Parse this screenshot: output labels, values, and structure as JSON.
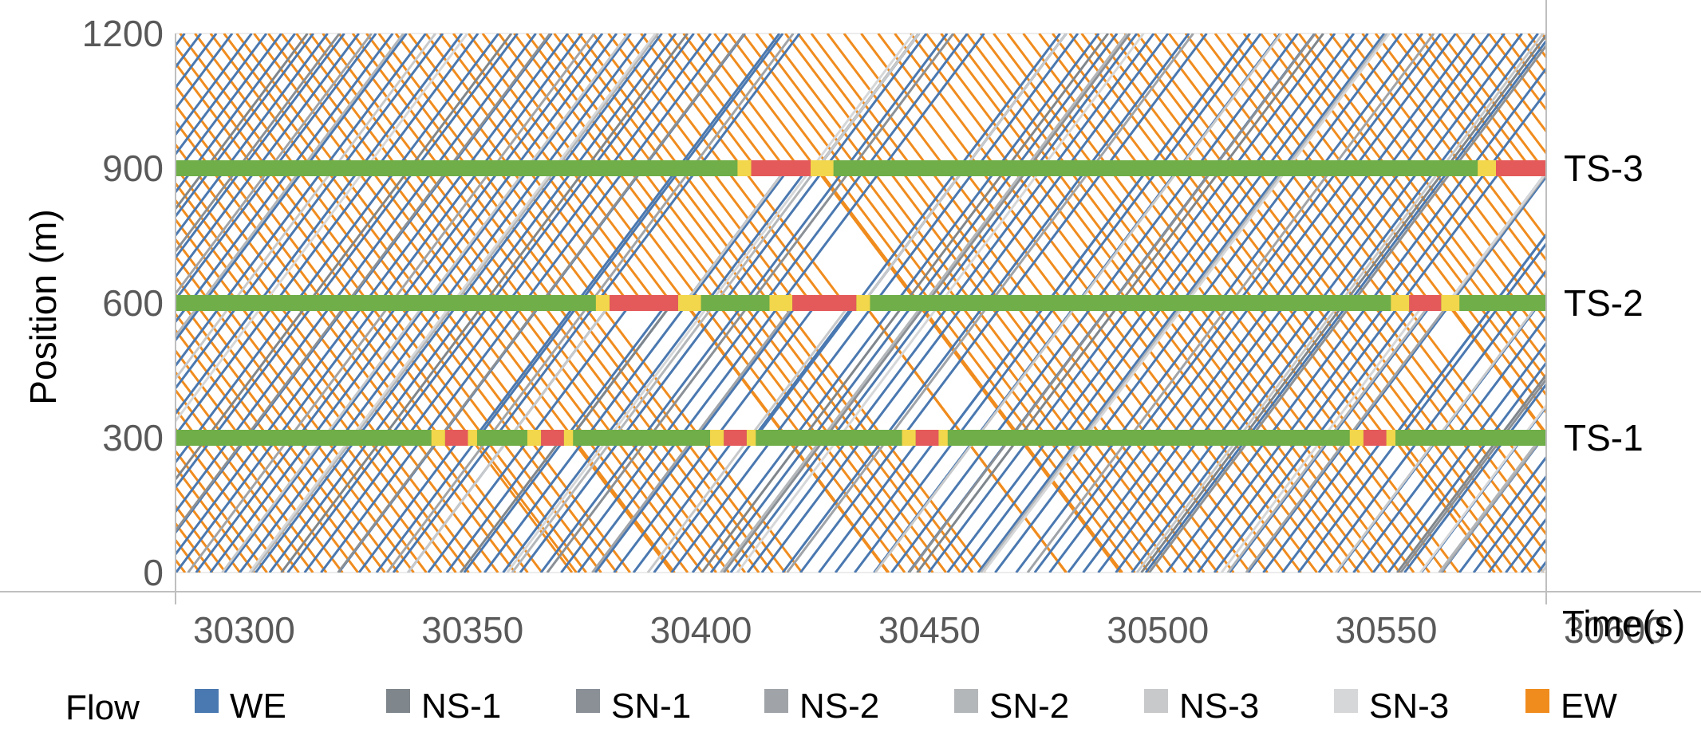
{
  "chart_data": {
    "type": "line",
    "title": "",
    "xlabel": "Time(s)",
    "ylabel": "Position (m)",
    "xlim": [
      30285,
      30585
    ],
    "ylim": [
      0,
      1200
    ],
    "x_ticks": [
      "30300",
      "30350",
      "30400",
      "30450",
      "30500",
      "30550",
      "30600"
    ],
    "y_ticks": [
      "0",
      "300",
      "600",
      "900",
      "1200"
    ],
    "grid": "horizontal",
    "legend_title": "Flow",
    "legend_position": "bottom",
    "series": [
      {
        "name": "WE",
        "color": "#4a78b0",
        "direction": "increasing",
        "speed_mps": 13.5
      },
      {
        "name": "NS-1",
        "color": "#7f868c",
        "direction": "increasing",
        "speed_mps": 13.5
      },
      {
        "name": "SN-1",
        "color": "#8a9096",
        "direction": "increasing",
        "speed_mps": 13.5
      },
      {
        "name": "NS-2",
        "color": "#a0a4a8",
        "direction": "increasing",
        "speed_mps": 13.5
      },
      {
        "name": "SN-2",
        "color": "#b4b7ba",
        "direction": "increasing",
        "speed_mps": 13.5
      },
      {
        "name": "NS-3",
        "color": "#c7c9cb",
        "direction": "increasing",
        "speed_mps": 13.5
      },
      {
        "name": "SN-3",
        "color": "#d6d7d9",
        "direction": "increasing",
        "speed_mps": 13.5
      },
      {
        "name": "EW",
        "color": "#f08c1e",
        "direction": "decreasing",
        "speed_mps": 13.5
      }
    ],
    "signals": [
      {
        "label": "TS-1",
        "position": 300,
        "red": [
          [
            30344,
            30349
          ],
          [
            30365,
            30370
          ],
          [
            30405,
            30410
          ],
          [
            30447,
            30452
          ],
          [
            30545,
            30550
          ]
        ],
        "yellow": [
          [
            30341,
            30344
          ],
          [
            30349,
            30351
          ],
          [
            30362,
            30365
          ],
          [
            30370,
            30372
          ],
          [
            30402,
            30405
          ],
          [
            30410,
            30412
          ],
          [
            30444,
            30447
          ],
          [
            30452,
            30454
          ],
          [
            30542,
            30545
          ],
          [
            30550,
            30552
          ]
        ]
      },
      {
        "label": "TS-2",
        "position": 600,
        "red": [
          [
            30380,
            30395
          ],
          [
            30420,
            30434
          ],
          [
            30555,
            30562
          ]
        ],
        "yellow": [
          [
            30377,
            30380
          ],
          [
            30395,
            30400
          ],
          [
            30415,
            30420
          ],
          [
            30434,
            30437
          ],
          [
            30551,
            30555
          ],
          [
            30562,
            30566
          ]
        ]
      },
      {
        "label": "TS-3",
        "position": 900,
        "red": [
          [
            30411,
            30424
          ],
          [
            30574,
            30585
          ]
        ],
        "yellow": [
          [
            30408,
            30411
          ],
          [
            30424,
            30429
          ],
          [
            30570,
            30574
          ]
        ]
      }
    ],
    "signal_colors": {
      "green": "#6fae48",
      "yellow": "#f2d64b",
      "red": "#e45a5a"
    }
  }
}
